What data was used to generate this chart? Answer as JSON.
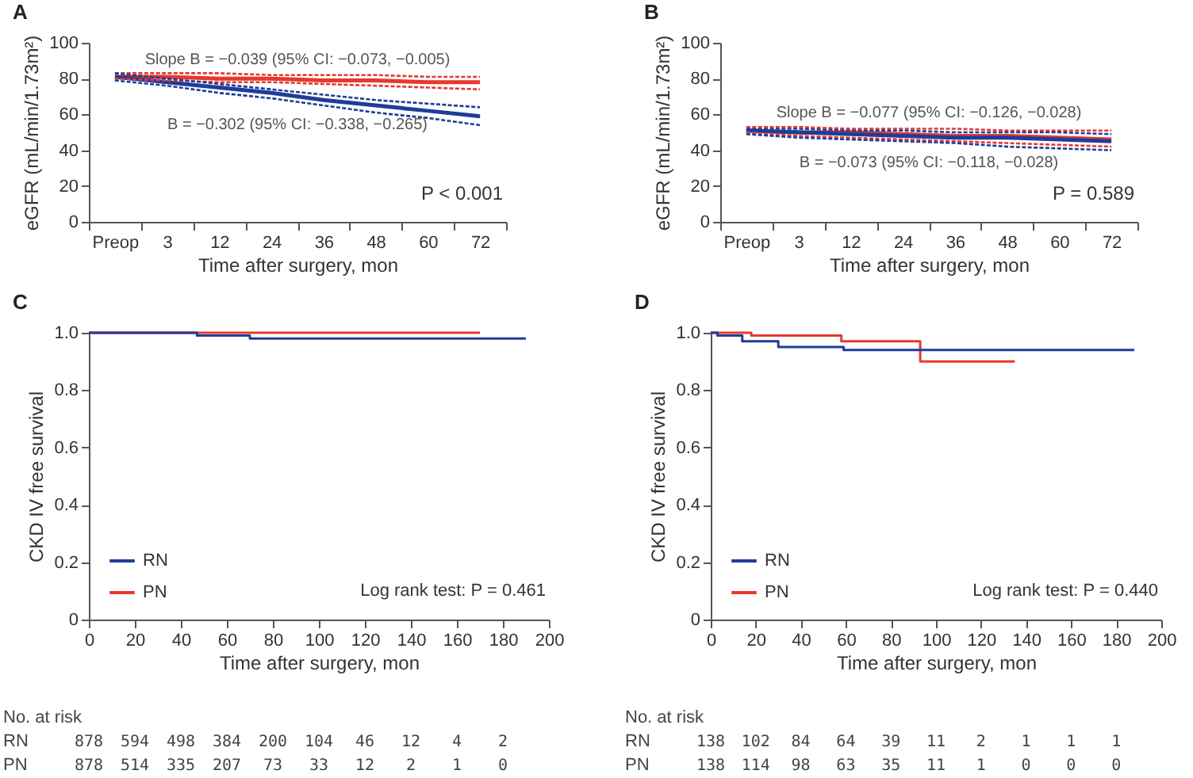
{
  "chart_data": [
    {
      "type": "line",
      "title": "A",
      "categories": [
        "Preop",
        "3",
        "12",
        "24",
        "36",
        "48",
        "60",
        "72"
      ],
      "xlabel": "Time after surgery, mon",
      "ylabel": "eGFR (mL/min/1.73m²)",
      "ylim": [
        0,
        100
      ],
      "yticks": [
        0,
        20,
        40,
        60,
        80,
        100
      ],
      "line_style": "solid",
      "series": [
        {
          "color": "#1f3c98",
          "values": [
            81,
            78,
            75,
            72,
            68,
            65,
            62,
            59
          ]
        },
        {
          "color": "#1f3c98",
          "values": [
            79,
            76,
            72,
            69,
            65,
            61,
            58,
            54
          ],
          "line_style": "dotted"
        },
        {
          "color": "#1f3c98",
          "values": [
            83,
            80,
            77,
            74,
            71,
            68,
            66,
            64
          ],
          "line_style": "dotted"
        },
        {
          "color": "#e5392e",
          "values": [
            81,
            81,
            80,
            80,
            79,
            79,
            78,
            78
          ]
        },
        {
          "color": "#e5392e",
          "values": [
            80,
            79,
            78,
            78,
            77,
            76,
            75,
            74
          ],
          "line_style": "dotted"
        },
        {
          "color": "#e5392e",
          "values": [
            83,
            83,
            83,
            82,
            82,
            82,
            81,
            81
          ],
          "line_style": "dotted"
        }
      ],
      "annotations": [
        "Slope B = −0.039 (95% CI: −0.073, −0.005)",
        "B = −0.302 (95% CI: −0.338, −0.265)",
        "P < 0.001"
      ]
    },
    {
      "type": "line",
      "title": "B",
      "categories": [
        "Preop",
        "3",
        "12",
        "24",
        "36",
        "48",
        "60",
        "72"
      ],
      "xlabel": "Time after surgery, mon",
      "ylabel": "eGFR (mL/min/1.73m²)",
      "ylim": [
        0,
        100
      ],
      "yticks": [
        0,
        20,
        40,
        60,
        80,
        100
      ],
      "line_style": "solid",
      "series": [
        {
          "color": "#1f3c98",
          "values": [
            51,
            50,
            49,
            48,
            47,
            47,
            46,
            45
          ]
        },
        {
          "color": "#1f3c98",
          "values": [
            49,
            47,
            46,
            45,
            44,
            42,
            41,
            40
          ],
          "line_style": "dotted"
        },
        {
          "color": "#1f3c98",
          "values": [
            52,
            52,
            51,
            51,
            50,
            50,
            50,
            49
          ],
          "line_style": "dotted"
        },
        {
          "color": "#e5392e",
          "values": [
            51,
            50,
            50,
            49,
            48,
            48,
            47,
            46
          ]
        },
        {
          "color": "#e5392e",
          "values": [
            50,
            48,
            47,
            46,
            45,
            44,
            43,
            42
          ],
          "line_style": "dotted"
        },
        {
          "color": "#e5392e",
          "values": [
            53,
            53,
            52,
            52,
            52,
            51,
            51,
            51
          ],
          "line_style": "dotted"
        }
      ],
      "annotations": [
        "Slope B = −0.077 (95% CI: −0.126, −0.028)",
        "B = −0.073 (95% CI: −0.118, −0.028)",
        "P = 0.589"
      ]
    },
    {
      "type": "step",
      "title": "C",
      "xlabel": "Time after surgery, mon",
      "ylabel": "CKD IV free survival",
      "xlim": [
        0,
        200
      ],
      "xticks": [
        0,
        20,
        40,
        60,
        80,
        100,
        120,
        140,
        160,
        180,
        200
      ],
      "ylim": [
        0,
        1
      ],
      "yticks": [
        0,
        0.2,
        0.4,
        0.6,
        0.8,
        {
          "value": 1,
          "label": "1.0"
        }
      ],
      "legend": "bottom left",
      "line_style": "solid",
      "series": [
        {
          "name": "RN",
          "color": "#1f3c98",
          "x": [
            0,
            47,
            70,
            190
          ],
          "values": [
            1,
            0.99,
            0.98,
            0.98
          ]
        },
        {
          "name": "PN",
          "color": "#e5392e",
          "x": [
            0,
            170
          ],
          "values": [
            1,
            1
          ]
        }
      ],
      "annotations": [
        "Log rank test: P = 0.461",
        "No. at risk",
        "RN 878 594 498 384 200 104 46 12 4 2",
        "PN 878 514 335 207 73 33 12 2 1 0"
      ]
    },
    {
      "type": "step",
      "title": "D",
      "xlabel": "Time after surgery, mon",
      "ylabel": "CKD IV free survival",
      "xlim": [
        0,
        200
      ],
      "xticks": [
        0,
        20,
        40,
        60,
        80,
        100,
        120,
        140,
        160,
        180,
        200
      ],
      "ylim": [
        0,
        1
      ],
      "yticks": [
        0,
        0.2,
        0.4,
        0.6,
        0.8,
        {
          "value": 1,
          "label": "1.0"
        }
      ],
      "legend": "bottom left",
      "line_style": "solid",
      "series": [
        {
          "name": "RN",
          "color": "#1f3c98",
          "x": [
            0,
            3,
            14,
            30,
            59,
            188
          ],
          "values": [
            1,
            0.99,
            0.97,
            0.95,
            0.94,
            0.94
          ]
        },
        {
          "name": "PN",
          "color": "#e5392e",
          "x": [
            0,
            18,
            58,
            93,
            135
          ],
          "values": [
            1,
            0.99,
            0.97,
            0.9,
            0.9
          ]
        }
      ],
      "annotations": [
        "Log rank test: P = 0.440",
        "No. at risk",
        "RN 138 102 84 64 39 11 2 1 1 1",
        "PN 138 114 98 63 35 11 1 0 0 0"
      ]
    }
  ]
}
